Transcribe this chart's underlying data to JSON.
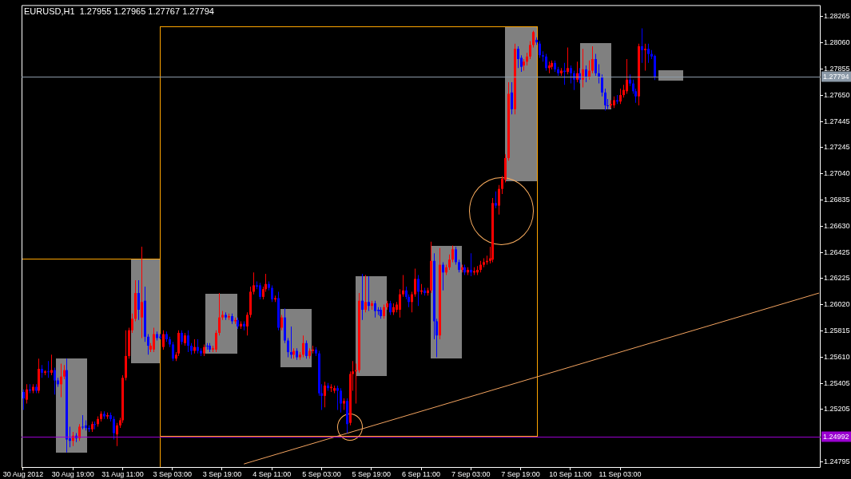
{
  "chart_data": {
    "type": "candlestick",
    "title": "EURUSD,H1  1.27955 1.27965 1.27767 1.27794",
    "categories": [
      "30 Aug 2012",
      null,
      null,
      null,
      null,
      null,
      null,
      null,
      null,
      null,
      null,
      null,
      null,
      null,
      null,
      null,
      "30 Aug 19:00",
      null,
      null,
      null,
      null,
      null,
      null,
      null,
      null,
      null,
      null,
      null,
      null,
      null,
      null,
      null,
      "31 Aug 11:00",
      null,
      null,
      null,
      null,
      null,
      null,
      null,
      null,
      null,
      null,
      null,
      null,
      null,
      null,
      null,
      "3 Sep 03:00",
      null,
      null,
      null,
      null,
      null,
      null,
      null,
      null,
      null,
      null,
      null,
      null,
      null,
      null,
      null,
      "3 Sep 19:00",
      null,
      null,
      null,
      null,
      null,
      null,
      null,
      null,
      null,
      null,
      null,
      null,
      null,
      null,
      null,
      "4 Sep 11:00",
      null,
      null,
      null,
      null,
      null,
      null,
      null,
      null,
      null,
      null,
      null,
      null,
      null,
      null,
      null,
      "5 Sep 03:00",
      null,
      null,
      null,
      null,
      null,
      null,
      null,
      null,
      null,
      null,
      null,
      null,
      null,
      null,
      null,
      "5 Sep 19:00",
      null,
      null,
      null,
      null,
      null,
      null,
      null,
      null,
      null,
      null,
      null,
      null,
      null,
      null,
      null,
      "6 Sep 11:00",
      null,
      null,
      null,
      null,
      null,
      null,
      null,
      null,
      null,
      null,
      null,
      null,
      null,
      null,
      null,
      "7 Sep 03:00",
      null,
      null,
      null,
      null,
      null,
      null,
      null,
      null,
      null,
      null,
      null,
      null,
      null,
      null,
      null,
      "7 Sep 19:00",
      null,
      null,
      null,
      null,
      null,
      null,
      null,
      null,
      null,
      null,
      null,
      null,
      null,
      null,
      null,
      "10 Sep 11:00",
      null,
      null,
      null,
      null,
      null,
      null,
      null,
      null,
      null,
      null,
      null,
      null,
      null,
      null,
      null,
      "11 Sep 03:00",
      null,
      null,
      null,
      null,
      null,
      null,
      null,
      null,
      null,
      null,
      null,
      null,
      null,
      null,
      null,
      null,
      null,
      null,
      null,
      null,
      null,
      null,
      null,
      null,
      null,
      null,
      null,
      null,
      null,
      null,
      null,
      null,
      null,
      null,
      null,
      null,
      null,
      null,
      null,
      null,
      null,
      null,
      null,
      null,
      null,
      null,
      null,
      null,
      null,
      null,
      null,
      null,
      null,
      null,
      null,
      null,
      null,
      null,
      null,
      null,
      null,
      null,
      null,
      null
    ],
    "ohlc": [
      [
        1.2534,
        1.2536,
        1.252,
        1.2529
      ],
      [
        1.2528,
        1.254,
        1.2525,
        1.2536
      ],
      [
        1.2536,
        1.254,
        1.2533,
        1.2535
      ],
      [
        1.2535,
        1.254,
        1.2533,
        1.2538
      ],
      [
        1.2538,
        1.254,
        1.2533,
        1.2535
      ],
      [
        1.2535,
        1.256,
        1.2533,
        1.2552
      ],
      [
        1.2552,
        1.2555,
        1.2545,
        1.2549
      ],
      [
        1.2549,
        1.2551,
        1.2547,
        1.255
      ],
      [
        1.255,
        1.2558,
        1.2545,
        1.255
      ],
      [
        1.2549,
        1.2563,
        1.2547,
        1.2551
      ],
      [
        1.2551,
        1.2553,
        1.2532,
        1.2543
      ],
      [
        1.2543,
        1.2545,
        1.2538,
        1.254
      ],
      [
        1.254,
        1.2556,
        1.253,
        1.2546
      ],
      [
        1.2546,
        1.2555,
        1.2544,
        1.2551
      ],
      [
        1.2551,
        1.256,
        1.2487,
        1.2497
      ],
      [
        1.2498,
        1.2507,
        1.2491,
        1.2496
      ],
      [
        1.2496,
        1.2503,
        1.2492,
        1.25
      ],
      [
        1.25,
        1.2502,
        1.2495,
        1.2498
      ],
      [
        1.2498,
        1.2509,
        1.2496,
        1.2507
      ],
      [
        1.2507,
        1.2516,
        1.2505,
        1.2507
      ],
      [
        1.2508,
        1.2512,
        1.2504,
        1.2506
      ],
      [
        1.2506,
        1.2508,
        1.2503,
        1.2505
      ],
      [
        1.2505,
        1.2511,
        1.2503,
        1.2509
      ],
      [
        1.2509,
        1.2511,
        1.2505,
        1.2509
      ],
      [
        1.2509,
        1.2515,
        1.2507,
        1.2513
      ],
      [
        1.2513,
        1.2519,
        1.2511,
        1.2517
      ],
      [
        1.2517,
        1.2519,
        1.2513,
        1.2515
      ],
      [
        1.2515,
        1.2518,
        1.2513,
        1.2516
      ],
      [
        1.2516,
        1.2518,
        1.2511,
        1.2513
      ],
      [
        1.2513,
        1.2515,
        1.2497,
        1.2502
      ],
      [
        1.2501,
        1.251,
        1.2492,
        1.2508
      ],
      [
        1.2508,
        1.2514,
        1.2506,
        1.2512
      ],
      [
        1.2512,
        1.2547,
        1.251,
        1.2545
      ],
      [
        1.2545,
        1.2582,
        1.2543,
        1.2562
      ],
      [
        1.2562,
        1.2584,
        1.256,
        1.2582
      ],
      [
        1.2582,
        1.2595,
        1.258,
        1.2591
      ],
      [
        1.2591,
        1.2621,
        1.2589,
        1.2611
      ],
      [
        1.2611,
        1.2621,
        1.259,
        1.2598
      ],
      [
        1.2592,
        1.2647,
        1.2576,
        1.2604
      ],
      [
        1.2605,
        1.2616,
        1.2573,
        1.2577
      ],
      [
        1.2577,
        1.2579,
        1.2563,
        1.257
      ],
      [
        1.2567,
        1.2572,
        1.2565,
        1.257
      ],
      [
        1.2567,
        1.2584,
        1.2565,
        1.2579
      ],
      [
        1.2579,
        1.2581,
        1.2574,
        1.2576
      ],
      [
        1.2577,
        1.2579,
        1.2575,
        1.2577
      ],
      [
        1.2569,
        1.2582,
        1.2567,
        1.2579
      ],
      [
        1.2579,
        1.2581,
        1.2573,
        1.2575
      ],
      [
        1.2575,
        1.2577,
        1.2569,
        1.2571
      ],
      [
        1.2571,
        1.2573,
        1.2558,
        1.256
      ],
      [
        1.256,
        1.2565,
        1.2558,
        1.2563
      ],
      [
        1.2564,
        1.2582,
        1.2562,
        1.258
      ],
      [
        1.258,
        1.2582,
        1.2571,
        1.2573
      ],
      [
        1.2572,
        1.258,
        1.257,
        1.2578
      ],
      [
        1.2578,
        1.2582,
        1.2565,
        1.257
      ],
      [
        1.257,
        1.2572,
        1.2563,
        1.2566
      ],
      [
        1.2566,
        1.2575,
        1.2564,
        1.2569
      ],
      [
        1.2569,
        1.2575,
        1.2564,
        1.2566
      ],
      [
        1.2566,
        1.2568,
        1.2562,
        1.2564
      ],
      [
        1.2564,
        1.2571,
        1.2562,
        1.2569
      ],
      [
        1.257,
        1.2572,
        1.2567,
        1.257
      ],
      [
        1.257,
        1.2572,
        1.2565,
        1.2567
      ],
      [
        1.2567,
        1.257,
        1.2565,
        1.2568
      ],
      [
        1.2567,
        1.2582,
        1.2565,
        1.258
      ],
      [
        1.258,
        1.2611,
        1.2578,
        1.2592
      ],
      [
        1.2592,
        1.2597,
        1.259,
        1.2594
      ],
      [
        1.2594,
        1.2596,
        1.259,
        1.2592
      ],
      [
        1.2592,
        1.2595,
        1.259,
        1.2593
      ],
      [
        1.2593,
        1.2595,
        1.2587,
        1.2589
      ],
      [
        1.2589,
        1.2592,
        1.2587,
        1.259
      ],
      [
        1.259,
        1.2592,
        1.2583,
        1.2585
      ],
      [
        1.2585,
        1.2589,
        1.2583,
        1.2587
      ],
      [
        1.2587,
        1.2589,
        1.2582,
        1.2585
      ],
      [
        1.2585,
        1.2596,
        1.2578,
        1.2594
      ],
      [
        1.2594,
        1.2616,
        1.2592,
        1.2612
      ],
      [
        1.2612,
        1.2627,
        1.261,
        1.2617
      ],
      [
        1.2617,
        1.262,
        1.2614,
        1.2616
      ],
      [
        1.2617,
        1.2619,
        1.2606,
        1.2608
      ],
      [
        1.2608,
        1.2616,
        1.2606,
        1.2614
      ],
      [
        1.2614,
        1.2626,
        1.2612,
        1.2618
      ],
      [
        1.2618,
        1.262,
        1.2613,
        1.2615
      ],
      [
        1.2615,
        1.2617,
        1.2604,
        1.2606
      ],
      [
        1.2606,
        1.2609,
        1.2604,
        1.2607
      ],
      [
        1.2607,
        1.2612,
        1.2582,
        1.2584
      ],
      [
        1.2584,
        1.2594,
        1.2582,
        1.2592
      ],
      [
        1.2592,
        1.2599,
        1.2572,
        1.2574
      ],
      [
        1.2574,
        1.2576,
        1.2561,
        1.2565
      ],
      [
        1.2565,
        1.2585,
        1.256,
        1.2563
      ],
      [
        1.2563,
        1.2568,
        1.256,
        1.2566
      ],
      [
        1.2566,
        1.2568,
        1.2559,
        1.2561
      ],
      [
        1.2561,
        1.2565,
        1.2559,
        1.2563
      ],
      [
        1.2563,
        1.2578,
        1.2561,
        1.2572
      ],
      [
        1.2572,
        1.2574,
        1.256,
        1.2562
      ],
      [
        1.2562,
        1.2568,
        1.256,
        1.2566
      ],
      [
        1.2566,
        1.257,
        1.2564,
        1.2567
      ],
      [
        1.2567,
        1.2569,
        1.2562,
        1.2564
      ],
      [
        1.2564,
        1.2566,
        1.2531,
        1.2533
      ],
      [
        1.2533,
        1.254,
        1.252,
        1.2531
      ],
      [
        1.2531,
        1.2542,
        1.2522,
        1.2539
      ],
      [
        1.2539,
        1.2541,
        1.2535,
        1.2537
      ],
      [
        1.2537,
        1.254,
        1.2534,
        1.2538
      ],
      [
        1.2535,
        1.2539,
        1.2533,
        1.2537
      ],
      [
        1.2537,
        1.2539,
        1.252,
        1.2535
      ],
      [
        1.2535,
        1.2537,
        1.2518,
        1.2525
      ],
      [
        1.2525,
        1.2529,
        1.252,
        1.2527
      ],
      [
        1.2527,
        1.2529,
        1.2502,
        1.2509
      ],
      [
        1.251,
        1.255,
        1.2508,
        1.2548
      ],
      [
        1.2548,
        1.2558,
        1.2535,
        1.255
      ],
      [
        1.255,
        1.2556,
        1.2525,
        1.2551
      ],
      [
        1.2551,
        1.2611,
        1.2549,
        1.2605
      ],
      [
        1.2605,
        1.2626,
        1.259,
        1.2598
      ],
      [
        1.2598,
        1.2625,
        1.2596,
        1.2604
      ],
      [
        1.2604,
        1.2624,
        1.2597,
        1.2601
      ],
      [
        1.2601,
        1.2605,
        1.2598,
        1.2603
      ],
      [
        1.2603,
        1.2605,
        1.2592,
        1.2597
      ],
      [
        1.2598,
        1.26,
        1.2594,
        1.2597
      ],
      [
        1.2598,
        1.26,
        1.2591,
        1.2593
      ],
      [
        1.2593,
        1.2602,
        1.2591,
        1.26
      ],
      [
        1.26,
        1.2605,
        1.2598,
        1.2603
      ],
      [
        1.2603,
        1.2605,
        1.2594,
        1.2596
      ],
      [
        1.2596,
        1.2603,
        1.2594,
        1.26
      ],
      [
        1.2598,
        1.2604,
        1.2596,
        1.2602
      ],
      [
        1.2598,
        1.2614,
        1.2592,
        1.261
      ],
      [
        1.261,
        1.2625,
        1.2608,
        1.2613
      ],
      [
        1.2613,
        1.2616,
        1.2606,
        1.2608
      ],
      [
        1.2608,
        1.261,
        1.26,
        1.2604
      ],
      [
        1.2604,
        1.2612,
        1.2596,
        1.261
      ],
      [
        1.261,
        1.263,
        1.2608,
        1.2622
      ],
      [
        1.2622,
        1.2625,
        1.2601,
        1.2612
      ],
      [
        1.2612,
        1.2618,
        1.261,
        1.2613
      ],
      [
        1.2613,
        1.2615,
        1.2609,
        1.2611
      ],
      [
        1.2611,
        1.2615,
        1.2609,
        1.2613
      ],
      [
        1.2613,
        1.2651,
        1.2611,
        1.2636
      ],
      [
        1.2636,
        1.2642,
        1.2575,
        1.2589
      ],
      [
        1.2589,
        1.2591,
        1.2561,
        1.2578
      ],
      [
        1.2578,
        1.2646,
        1.2575,
        1.2633
      ],
      [
        1.2633,
        1.2635,
        1.2613,
        1.2627
      ],
      [
        1.2627,
        1.2633,
        1.2625,
        1.2631
      ],
      [
        1.2631,
        1.2641,
        1.2629,
        1.2637
      ],
      [
        1.2637,
        1.2648,
        1.2635,
        1.2645
      ],
      [
        1.2645,
        1.2647,
        1.2633,
        1.2635
      ],
      [
        1.2635,
        1.2637,
        1.2627,
        1.2629
      ],
      [
        1.2629,
        1.2633,
        1.2627,
        1.2631
      ],
      [
        1.2631,
        1.2633,
        1.2625,
        1.2627
      ],
      [
        1.2627,
        1.2631,
        1.2625,
        1.2629
      ],
      [
        1.2629,
        1.2642,
        1.2624,
        1.2627
      ],
      [
        1.2627,
        1.2631,
        1.2625,
        1.2628
      ],
      [
        1.2627,
        1.2632,
        1.2625,
        1.2629
      ],
      [
        1.2629,
        1.2636,
        1.2627,
        1.2633
      ],
      [
        1.2633,
        1.2638,
        1.2631,
        1.2635
      ],
      [
        1.2635,
        1.264,
        1.2633,
        1.2636
      ],
      [
        1.2636,
        1.2647,
        1.2634,
        1.2638
      ],
      [
        1.2637,
        1.2685,
        1.2635,
        1.2681
      ],
      [
        1.2681,
        1.269,
        1.2677,
        1.2679
      ],
      [
        1.2679,
        1.2695,
        1.2672,
        1.2692
      ],
      [
        1.2692,
        1.2702,
        1.2688,
        1.27
      ],
      [
        1.2699,
        1.2719,
        1.2697,
        1.2716
      ],
      [
        1.2716,
        1.2775,
        1.2714,
        1.2766
      ],
      [
        1.2767,
        1.2775,
        1.275,
        1.2754
      ],
      [
        1.2754,
        1.2805,
        1.275,
        1.2801
      ],
      [
        1.2801,
        1.2803,
        1.2786,
        1.2793
      ],
      [
        1.2794,
        1.2796,
        1.2783,
        1.2787
      ],
      [
        1.2788,
        1.2793,
        1.2784,
        1.2791
      ],
      [
        1.2791,
        1.2798,
        1.2788,
        1.2795
      ],
      [
        1.2795,
        1.2807,
        1.2793,
        1.2804
      ],
      [
        1.2804,
        1.2815,
        1.2802,
        1.2814
      ],
      [
        1.2808,
        1.281,
        1.2804,
        1.2806
      ],
      [
        1.2805,
        1.2807,
        1.2794,
        1.2796
      ],
      [
        1.2796,
        1.2799,
        1.2791,
        1.2795
      ],
      [
        1.2795,
        1.2797,
        1.2784,
        1.2786
      ],
      [
        1.2786,
        1.2791,
        1.2782,
        1.2788
      ],
      [
        1.2787,
        1.2792,
        1.2785,
        1.279
      ],
      [
        1.279,
        1.2792,
        1.2783,
        1.2785
      ],
      [
        1.2785,
        1.2787,
        1.278,
        1.2782
      ],
      [
        1.2782,
        1.2786,
        1.278,
        1.2784
      ],
      [
        1.2784,
        1.279,
        1.2773,
        1.2783
      ],
      [
        1.2783,
        1.2802,
        1.2781,
        1.2786
      ],
      [
        1.2786,
        1.2788,
        1.2774,
        1.2782
      ],
      [
        1.2782,
        1.2784,
        1.2769,
        1.2777
      ],
      [
        1.2777,
        1.2791,
        1.2775,
        1.2782
      ],
      [
        1.2782,
        1.2786,
        1.2774,
        1.2777
      ],
      [
        1.2777,
        1.2801,
        1.2771,
        1.2785
      ],
      [
        1.2785,
        1.2788,
        1.2775,
        1.2779
      ],
      [
        1.2779,
        1.2792,
        1.2777,
        1.2784
      ],
      [
        1.2784,
        1.2803,
        1.2782,
        1.2793
      ],
      [
        1.2793,
        1.2797,
        1.278,
        1.2782
      ],
      [
        1.2782,
        1.2789,
        1.2774,
        1.2779
      ],
      [
        1.2779,
        1.2781,
        1.2764,
        1.2767
      ],
      [
        1.2767,
        1.277,
        1.2753,
        1.2757
      ],
      [
        1.2757,
        1.2762,
        1.2754,
        1.2757
      ],
      [
        1.2757,
        1.2761,
        1.2755,
        1.2758
      ],
      [
        1.2757,
        1.2764,
        1.2755,
        1.2761
      ],
      [
        1.2761,
        1.2765,
        1.2758,
        1.276
      ],
      [
        1.276,
        1.277,
        1.2758,
        1.2765
      ],
      [
        1.2765,
        1.2773,
        1.2763,
        1.2769
      ],
      [
        1.2768,
        1.2793,
        1.2766,
        1.2777
      ],
      [
        1.2777,
        1.2781,
        1.2772,
        1.2774
      ],
      [
        1.2774,
        1.2777,
        1.2766,
        1.2768
      ],
      [
        1.2768,
        1.277,
        1.2759,
        1.2764
      ],
      [
        1.2764,
        1.2805,
        1.2757,
        1.2803
      ],
      [
        1.2803,
        1.2817,
        1.279,
        1.28
      ],
      [
        1.28,
        1.2805,
        1.2784,
        1.2801
      ],
      [
        1.2801,
        1.2805,
        1.279,
        1.2797
      ],
      [
        1.2797,
        1.28,
        1.2793,
        1.2795
      ],
      [
        1.27955,
        1.27965,
        1.27767,
        1.27794
      ],
      null,
      null,
      null,
      null,
      null,
      null,
      null,
      null,
      null,
      null,
      null,
      null,
      null,
      null,
      null,
      null,
      null,
      null,
      null,
      null,
      null,
      null,
      null,
      null,
      null,
      null,
      null,
      null,
      null,
      null,
      null,
      null,
      null,
      null,
      null,
      null,
      null,
      null,
      null,
      null,
      null,
      null,
      null,
      null,
      null,
      null,
      null,
      null,
      null,
      null,
      null,
      null,
      null
    ],
    "series": [
      {
        "type": "line",
        "color": "#f4a460",
        "values": [
          null,
          null,
          null,
          null,
          null,
          null,
          null,
          null,
          null,
          null,
          null,
          null,
          null,
          null,
          null,
          null,
          null,
          null,
          null,
          null,
          null,
          null,
          null,
          null,
          null,
          null,
          null,
          null,
          null,
          null,
          null,
          null,
          null,
          null,
          null,
          null,
          null,
          null,
          null,
          null,
          null,
          null,
          null,
          null,
          null,
          null,
          null,
          null,
          null,
          null,
          null,
          null,
          null,
          null,
          null,
          null,
          null,
          null,
          null,
          null,
          null,
          null,
          null,
          null,
          null,
          null,
          null,
          null,
          null,
          null,
          null,
          1.2478,
          null,
          null,
          null,
          null,
          null,
          null,
          null,
          null,
          null,
          null,
          null,
          null,
          null,
          null,
          null,
          null,
          null,
          null,
          null,
          null,
          null,
          null,
          null,
          null,
          null,
          null,
          null,
          null,
          null,
          null,
          null,
          null,
          null,
          null,
          null,
          null,
          null,
          null,
          null,
          null,
          null,
          null,
          null,
          null,
          null,
          null,
          null,
          null,
          null,
          null,
          null,
          null,
          null,
          null,
          null,
          null,
          null,
          null,
          null,
          null,
          null,
          null,
          null,
          null,
          null,
          null,
          null,
          null,
          null,
          null,
          null,
          null,
          null,
          null,
          null,
          null,
          null,
          null,
          null,
          null,
          null,
          null,
          null,
          null,
          null,
          null,
          null,
          null,
          null,
          null,
          null,
          null,
          null,
          null,
          null,
          null,
          null,
          null,
          null,
          null,
          null,
          null,
          null,
          null,
          null,
          null,
          null,
          null,
          null,
          null,
          null,
          null,
          null,
          null,
          null,
          null,
          null,
          null,
          null,
          null,
          null,
          null,
          null,
          null,
          null,
          null,
          null,
          null,
          null,
          null,
          null,
          null,
          null,
          null,
          null,
          null,
          null,
          null,
          null,
          null,
          null,
          null,
          null,
          null,
          null,
          null,
          null,
          null,
          null,
          null,
          null,
          null,
          null,
          null,
          null,
          null,
          null,
          null,
          null,
          null,
          null,
          null,
          null,
          null,
          null,
          null,
          null,
          null,
          null,
          null,
          null,
          null,
          null,
          null,
          null,
          null,
          null,
          null,
          null,
          null,
          null,
          null,
          null,
          null,
          1.2611
        ]
      }
    ],
    "ylim": [
      1.2475,
      1.2835
    ],
    "yticks": [
      1.28265,
      {
        "value": 1.2806,
        "label": "1.28060"
      },
      1.27855,
      {
        "value": 1.2765,
        "label": "1.27650"
      },
      1.27445,
      1.27245,
      {
        "value": 1.2704,
        "label": "1.27040"
      },
      1.26835,
      {
        "value": 1.2663,
        "label": "1.26630"
      },
      1.26425,
      1.26225,
      {
        "value": 1.2602,
        "label": "1.26020"
      },
      1.25815,
      {
        "value": 1.2561,
        "label": "1.25610"
      },
      1.25405,
      1.25205,
      1.24795
    ],
    "ref_lines": [
      {
        "axis": "y",
        "value": 1.27794,
        "label": "1.27794",
        "color": "#8c9aa8"
      },
      {
        "axis": "y",
        "value": 1.24992,
        "label": "1.24992",
        "color": "#9a00d0"
      }
    ]
  }
}
